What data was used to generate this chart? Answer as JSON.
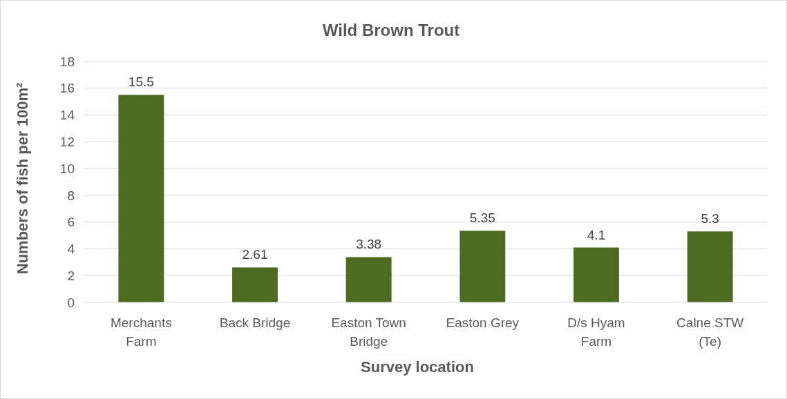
{
  "chart_data": {
    "type": "bar",
    "title": "Wild Brown Trout",
    "xlabel": "Survey location",
    "ylabel": "Numbers of fish per 100m²",
    "categories": [
      "Merchants Farm",
      "Back Bridge",
      "Easton Town Bridge",
      "Easton Grey",
      "D/s Hyam Farm",
      "Calne STW (Te)"
    ],
    "values": [
      15.5,
      2.61,
      3.38,
      5.35,
      4.1,
      5.3
    ],
    "color": "#4e6c21",
    "ylim": [
      0,
      18
    ],
    "yticks": [
      0,
      2,
      4,
      6,
      8,
      10,
      12,
      14,
      16,
      18
    ],
    "grid": "y",
    "data_labels": true
  }
}
